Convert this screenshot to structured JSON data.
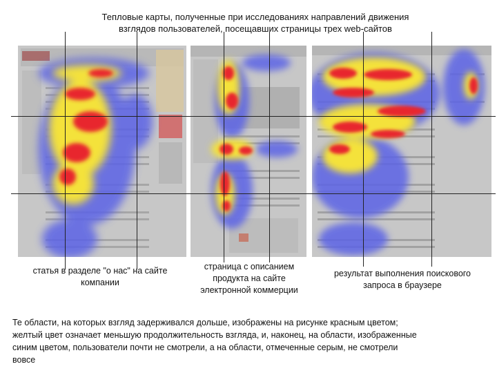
{
  "title": {
    "line1": "Тепловые карты, полученные при исследованиях направлений движения",
    "line2": "взглядов пользователей, посещавших страницы трех web-сайтов"
  },
  "captions": {
    "about": "статья в разделе \"о нас\" на сайте компании",
    "product": "страница с описанием продукта на сайте электронной коммерции",
    "search": "результат выполнения поискового запроса в браузере"
  },
  "footer": {
    "line1": "Те области, на которых взгляд задерживался дольше, изображены на рисунке красным цветом;",
    "line2": "желтый цвет означает меньшую продолжительность взгляда, и, наконец, на области, изображенные",
    "line3": "синим цветом, пользователи почти не смотрели, а на области, отмеченные серым, не смотрели",
    "line4": "вовсе"
  },
  "colors": {
    "gray": "#c7c7c7",
    "blue": "#5b63e6",
    "yellow": "#f4e23a",
    "red": "#e8262d"
  }
}
